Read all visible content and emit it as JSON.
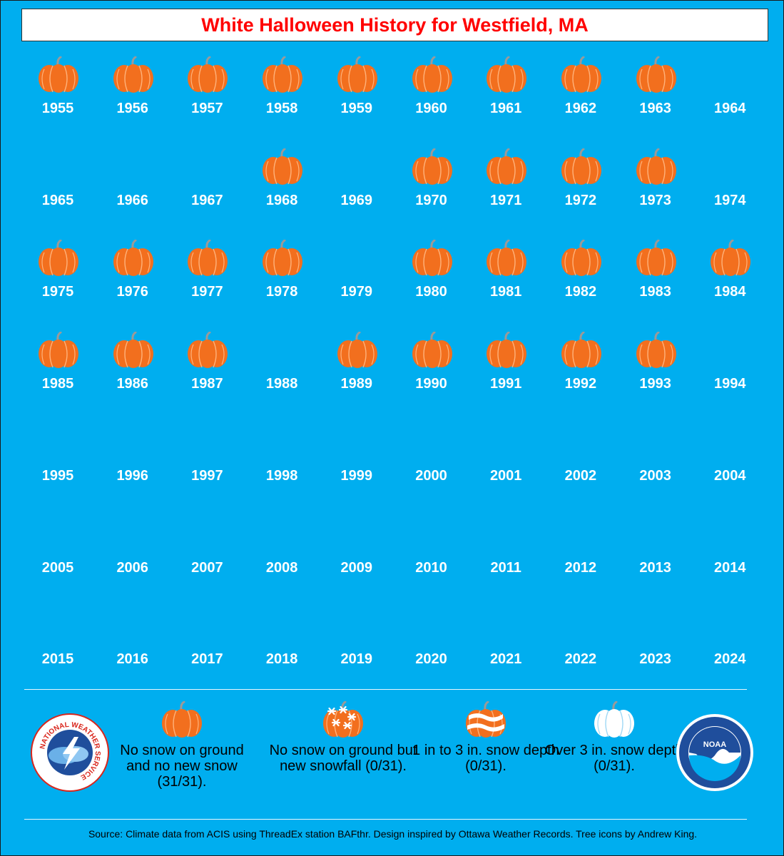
{
  "title": "White Halloween History for Westfield, MA",
  "colors": {
    "background": "#00aeef",
    "title_text": "#ff0000",
    "pumpkin": "#f26f1e",
    "pumpkin_rib": "#ffb27a",
    "stem": "#9a9a9a",
    "year_text": "#ffffff"
  },
  "chart_data": {
    "type": "table",
    "title": "White Halloween History for Westfield, MA",
    "columns": 10,
    "years": [
      {
        "year": "1955",
        "icon": "pumpkin-icon"
      },
      {
        "year": "1956",
        "icon": "pumpkin-icon"
      },
      {
        "year": "1957",
        "icon": "pumpkin-icon"
      },
      {
        "year": "1958",
        "icon": "pumpkin-icon"
      },
      {
        "year": "1959",
        "icon": "pumpkin-icon"
      },
      {
        "year": "1960",
        "icon": "pumpkin-icon"
      },
      {
        "year": "1961",
        "icon": "pumpkin-icon"
      },
      {
        "year": "1962",
        "icon": "pumpkin-icon"
      },
      {
        "year": "1963",
        "icon": "pumpkin-icon"
      },
      {
        "year": "1964",
        "icon": ""
      },
      {
        "year": "1965",
        "icon": ""
      },
      {
        "year": "1966",
        "icon": ""
      },
      {
        "year": "1967",
        "icon": ""
      },
      {
        "year": "1968",
        "icon": "pumpkin-icon"
      },
      {
        "year": "1969",
        "icon": ""
      },
      {
        "year": "1970",
        "icon": "pumpkin-icon"
      },
      {
        "year": "1971",
        "icon": "pumpkin-icon"
      },
      {
        "year": "1972",
        "icon": "pumpkin-icon"
      },
      {
        "year": "1973",
        "icon": "pumpkin-icon"
      },
      {
        "year": "1974",
        "icon": ""
      },
      {
        "year": "1975",
        "icon": "pumpkin-icon"
      },
      {
        "year": "1976",
        "icon": "pumpkin-icon"
      },
      {
        "year": "1977",
        "icon": "pumpkin-icon"
      },
      {
        "year": "1978",
        "icon": "pumpkin-icon"
      },
      {
        "year": "1979",
        "icon": ""
      },
      {
        "year": "1980",
        "icon": "pumpkin-icon"
      },
      {
        "year": "1981",
        "icon": "pumpkin-icon"
      },
      {
        "year": "1982",
        "icon": "pumpkin-icon"
      },
      {
        "year": "1983",
        "icon": "pumpkin-icon"
      },
      {
        "year": "1984",
        "icon": "pumpkin-icon"
      },
      {
        "year": "1985",
        "icon": "pumpkin-icon"
      },
      {
        "year": "1986",
        "icon": "pumpkin-icon"
      },
      {
        "year": "1987",
        "icon": "pumpkin-icon"
      },
      {
        "year": "1988",
        "icon": ""
      },
      {
        "year": "1989",
        "icon": "pumpkin-icon"
      },
      {
        "year": "1990",
        "icon": "pumpkin-icon"
      },
      {
        "year": "1991",
        "icon": "pumpkin-icon"
      },
      {
        "year": "1992",
        "icon": "pumpkin-icon"
      },
      {
        "year": "1993",
        "icon": "pumpkin-icon"
      },
      {
        "year": "1994",
        "icon": ""
      },
      {
        "year": "1995",
        "icon": ""
      },
      {
        "year": "1996",
        "icon": ""
      },
      {
        "year": "1997",
        "icon": ""
      },
      {
        "year": "1998",
        "icon": ""
      },
      {
        "year": "1999",
        "icon": ""
      },
      {
        "year": "2000",
        "icon": ""
      },
      {
        "year": "2001",
        "icon": ""
      },
      {
        "year": "2002",
        "icon": ""
      },
      {
        "year": "2003",
        "icon": ""
      },
      {
        "year": "2004",
        "icon": ""
      },
      {
        "year": "2005",
        "icon": ""
      },
      {
        "year": "2006",
        "icon": ""
      },
      {
        "year": "2007",
        "icon": ""
      },
      {
        "year": "2008",
        "icon": ""
      },
      {
        "year": "2009",
        "icon": ""
      },
      {
        "year": "2010",
        "icon": ""
      },
      {
        "year": "2011",
        "icon": ""
      },
      {
        "year": "2012",
        "icon": ""
      },
      {
        "year": "2013",
        "icon": ""
      },
      {
        "year": "2014",
        "icon": ""
      },
      {
        "year": "2015",
        "icon": ""
      },
      {
        "year": "2016",
        "icon": ""
      },
      {
        "year": "2017",
        "icon": ""
      },
      {
        "year": "2018",
        "icon": ""
      },
      {
        "year": "2019",
        "icon": ""
      },
      {
        "year": "2020",
        "icon": ""
      },
      {
        "year": "2021",
        "icon": ""
      },
      {
        "year": "2022",
        "icon": ""
      },
      {
        "year": "2023",
        "icon": ""
      },
      {
        "year": "2024",
        "icon": ""
      }
    ]
  },
  "legend": [
    {
      "icon": "pumpkin-icon",
      "label": "No snow on ground and no new snow (31/31)."
    },
    {
      "icon": "snowflake-pumpkin-icon",
      "label": "No snow on ground but new snowfall (0/31)."
    },
    {
      "icon": "striped-pumpkin-icon",
      "label": "1 in to 3 in. snow depth (0/31)."
    },
    {
      "icon": "white-pumpkin-icon",
      "label": "Over 3 in. snow depth (0/31)."
    }
  ],
  "logos": {
    "nws": {
      "icon": "nws-logo-icon",
      "text": "NATIONAL WEATHER SERVICE"
    },
    "noaa": {
      "icon": "noaa-logo-icon",
      "text": "NOAA"
    }
  },
  "source": "Source: Climate data from ACIS using ThreadEx station BAFthr. Design inspired by Ottawa Weather Records. Tree icons by Andrew King."
}
